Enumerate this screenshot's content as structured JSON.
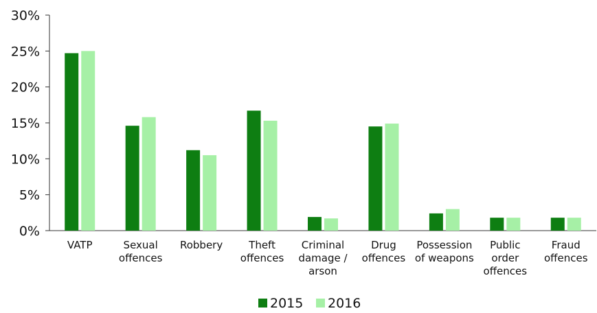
{
  "chart_data": {
    "type": "bar",
    "categories": [
      [
        "VATP"
      ],
      [
        "Sexual",
        "offences"
      ],
      [
        "Robbery"
      ],
      [
        "Theft",
        "offences"
      ],
      [
        "Criminal",
        "damage /",
        "arson"
      ],
      [
        "Drug",
        "offences"
      ],
      [
        "Possession",
        "of weapons"
      ],
      [
        "Public",
        "order",
        "offences"
      ],
      [
        "Fraud",
        "offences"
      ]
    ],
    "series": [
      {
        "name": "2015",
        "color": "#0e7e12",
        "values": [
          24.7,
          14.6,
          11.2,
          16.7,
          1.9,
          14.5,
          2.4,
          1.8,
          1.8
        ]
      },
      {
        "name": "2016",
        "color": "#a6f0a6",
        "values": [
          25.0,
          15.8,
          10.5,
          15.3,
          1.7,
          14.9,
          3.0,
          1.8,
          1.8
        ]
      }
    ],
    "ylim": [
      0,
      30
    ],
    "yticks": [
      {
        "value": 0,
        "label": "0%"
      },
      {
        "value": 5,
        "label": "5%"
      },
      {
        "value": 10,
        "label": "10%"
      },
      {
        "value": 15,
        "label": "15%"
      },
      {
        "value": 20,
        "label": "20%"
      },
      {
        "value": 25,
        "label": "25%"
      },
      {
        "value": 30,
        "label": "30%"
      }
    ],
    "legend": "bottom"
  }
}
